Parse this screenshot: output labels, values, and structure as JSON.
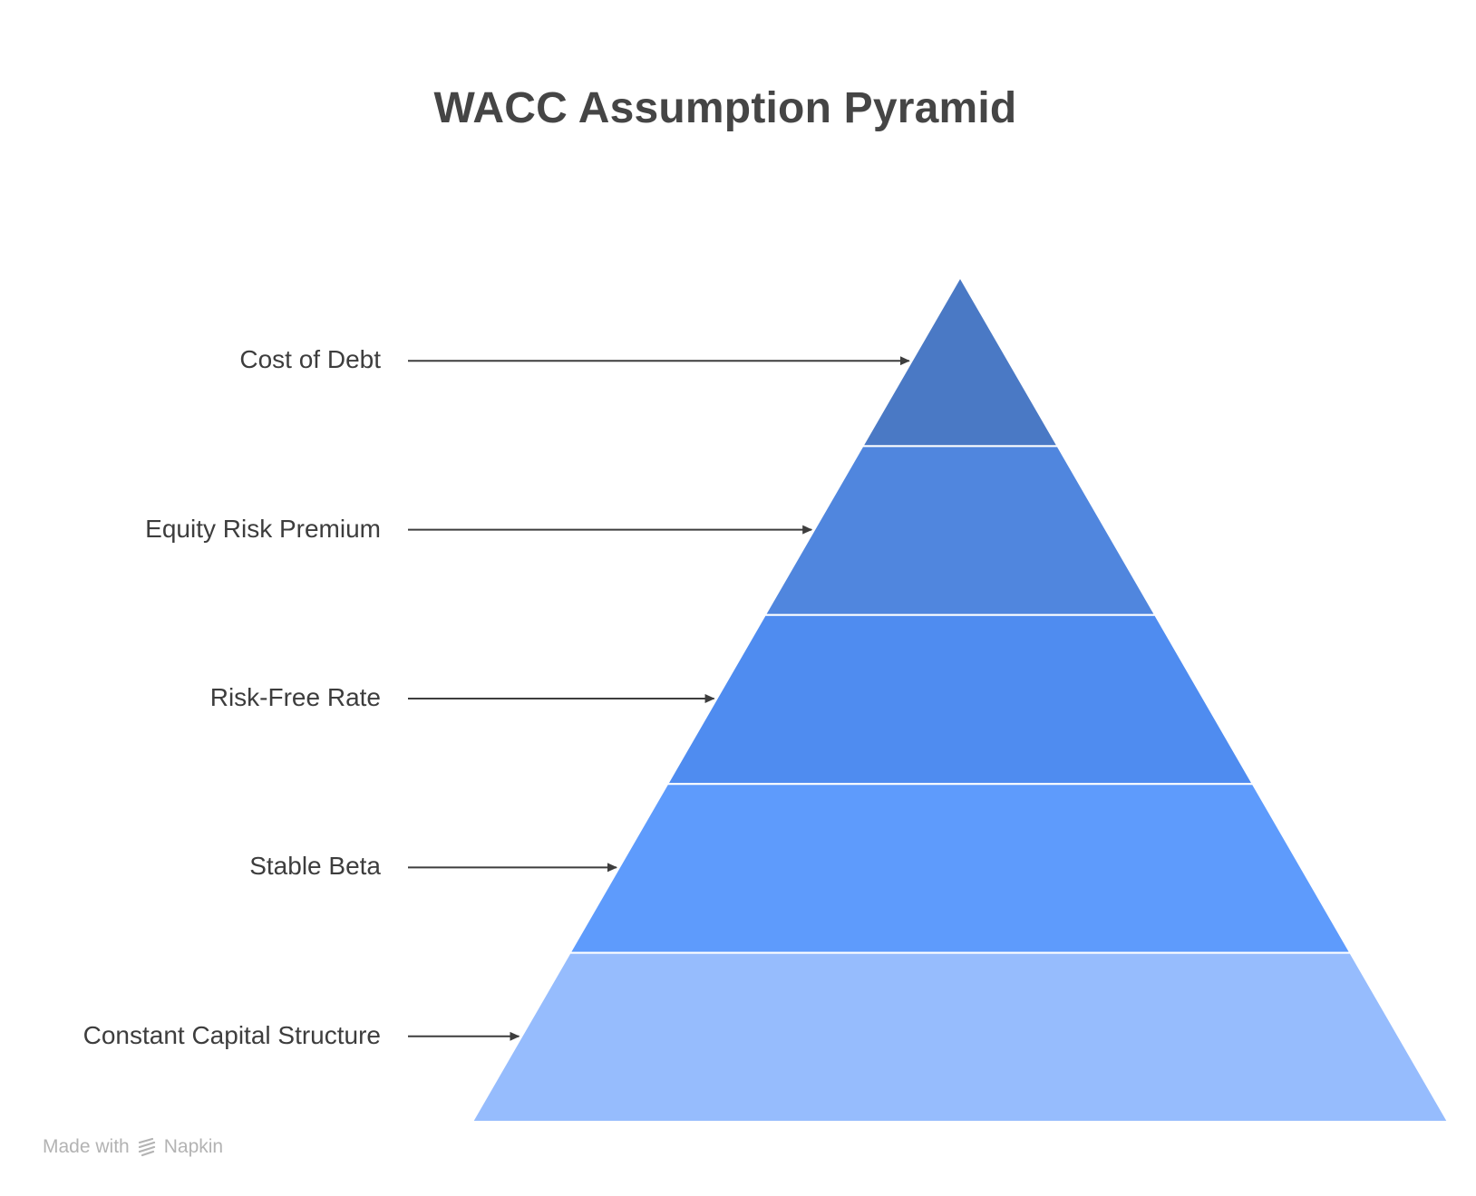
{
  "title": "WACC Assumption Pyramid",
  "pyramid": {
    "tiers": [
      {
        "label": "Cost of Debt",
        "color": "#4A79C5"
      },
      {
        "label": "Equity Risk Premium",
        "color": "#5086DE"
      },
      {
        "label": "Risk-Free Rate",
        "color": "#4F8CF0"
      },
      {
        "label": "Stable Beta",
        "color": "#5E9BFC"
      },
      {
        "label": "Constant Capital Structure",
        "color": "#96BCFD"
      }
    ]
  },
  "watermark": {
    "prefix": "Made with",
    "brand": "Napkin",
    "icon": "napkin-logo-icon"
  }
}
